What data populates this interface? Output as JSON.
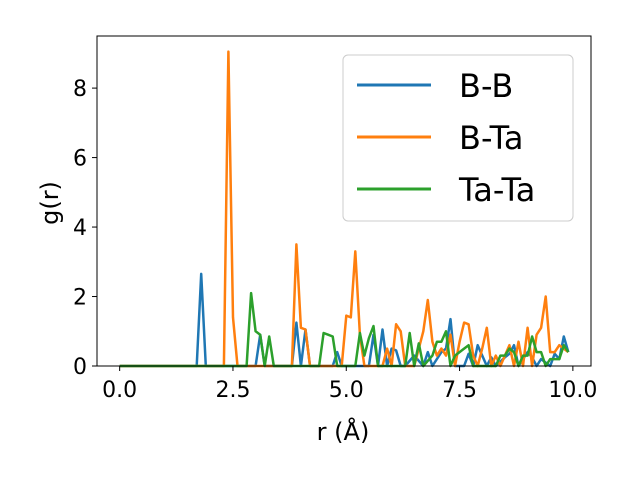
{
  "chart_data": {
    "type": "line",
    "title": "",
    "xlabel": "r (Å)",
    "ylabel": "g(r)",
    "xlim": [
      -0.5,
      10.4
    ],
    "ylim": [
      0,
      9.5
    ],
    "xticks": [
      0.0,
      2.5,
      5.0,
      7.5,
      10.0
    ],
    "xtick_labels": [
      "0.0",
      "2.5",
      "5.0",
      "7.5",
      "10.0"
    ],
    "yticks": [
      0,
      2,
      4,
      6,
      8
    ],
    "ytick_labels": [
      "0",
      "2",
      "4",
      "6",
      "8"
    ],
    "grid": false,
    "legend_position": "top-right",
    "series": [
      {
        "name": "B-B",
        "color": "#1f77b4",
        "x": [
          0.0,
          1.7,
          1.8,
          1.9,
          2.0,
          3.0,
          3.1,
          3.2,
          3.8,
          3.9,
          4.0,
          4.1,
          4.2,
          4.7,
          4.8,
          4.9,
          5.0,
          5.5,
          5.6,
          5.7,
          5.8,
          5.9,
          6.0,
          6.1,
          6.2,
          6.3,
          6.5,
          6.7,
          6.8,
          6.9,
          7.1,
          7.2,
          7.3,
          7.4,
          7.6,
          7.7,
          7.8,
          7.9,
          8.1,
          8.2,
          8.3,
          8.5,
          8.6,
          8.7,
          8.8,
          9.0,
          9.1,
          9.2,
          9.3,
          9.5,
          9.6,
          9.7,
          9.8,
          9.9
        ],
        "y": [
          0,
          0,
          2.65,
          0,
          0,
          0,
          0.9,
          0,
          0,
          1.25,
          0,
          1.05,
          0,
          0,
          0.4,
          0,
          0,
          0,
          0.9,
          0,
          1.05,
          0,
          0.5,
          0.45,
          0,
          0,
          0.3,
          0,
          0.4,
          0,
          0.4,
          0.5,
          1.35,
          0,
          0,
          0.35,
          0,
          0.6,
          0,
          0.25,
          0,
          0.25,
          0.35,
          0.6,
          0,
          0.4,
          0.25,
          0,
          0.2,
          0,
          0.35,
          0.2,
          0.85,
          0.4
        ]
      },
      {
        "name": "B-Ta",
        "color": "#ff7f0e",
        "x": [
          0.0,
          2.3,
          2.4,
          2.5,
          2.6,
          3.8,
          3.9,
          4.0,
          4.1,
          4.2,
          4.9,
          5.0,
          5.1,
          5.2,
          5.3,
          5.4,
          5.8,
          5.9,
          6.0,
          6.1,
          6.2,
          6.3,
          6.5,
          6.6,
          6.7,
          6.8,
          6.9,
          7.0,
          7.1,
          7.2,
          7.3,
          7.4,
          7.5,
          7.6,
          7.7,
          7.8,
          7.9,
          8.0,
          8.1,
          8.2,
          8.3,
          8.4,
          8.5,
          8.6,
          8.7,
          8.8,
          8.9,
          9.0,
          9.1,
          9.2,
          9.3,
          9.4,
          9.5,
          9.6,
          9.7,
          9.8,
          9.9
        ],
        "y": [
          0,
          0,
          9.05,
          1.4,
          0,
          0,
          3.5,
          1.1,
          1.05,
          0,
          0,
          1.45,
          1.4,
          3.3,
          0.9,
          0,
          0,
          0.5,
          0,
          1.2,
          1.0,
          0,
          0,
          0.5,
          1.0,
          1.9,
          0.7,
          0.3,
          0.5,
          0.3,
          0.9,
          0,
          0.7,
          1.25,
          1.2,
          0.3,
          0,
          0.5,
          1.1,
          0,
          0.3,
          0,
          0.3,
          0.6,
          0,
          0.7,
          0,
          1.1,
          0,
          0.9,
          1.1,
          2.0,
          0.4,
          0.4,
          0.6,
          0.5,
          0.4
        ]
      },
      {
        "name": "Ta-Ta",
        "color": "#2ca02c",
        "x": [
          0.0,
          2.8,
          2.9,
          3.0,
          3.1,
          3.2,
          3.3,
          3.4,
          4.4,
          4.5,
          4.6,
          4.7,
          4.8,
          5.2,
          5.3,
          5.4,
          5.5,
          5.6,
          5.7,
          6.3,
          6.4,
          6.5,
          6.6,
          6.7,
          6.9,
          7.0,
          7.1,
          7.2,
          7.3,
          7.4,
          7.6,
          7.7,
          7.8,
          8.3,
          8.4,
          8.5,
          8.6,
          8.7,
          8.8,
          8.9,
          9.0,
          9.1,
          9.2,
          9.3,
          9.4,
          9.5,
          9.6,
          9.7,
          9.8,
          9.9
        ],
        "y": [
          0,
          0,
          2.1,
          1.0,
          0.9,
          0,
          0.85,
          0,
          0,
          0.95,
          0.9,
          0.85,
          0,
          0,
          0.95,
          0.3,
          0.8,
          1.15,
          0,
          0,
          0.95,
          0,
          0.65,
          0,
          0.3,
          0.7,
          0.7,
          1.0,
          0,
          0.3,
          0.5,
          0.6,
          0,
          0,
          0.3,
          0.3,
          0.5,
          0.4,
          0,
          0.3,
          0.3,
          0.85,
          0.4,
          0.4,
          0,
          0.2,
          0.2,
          0.2,
          0.6,
          0.4
        ]
      }
    ]
  }
}
